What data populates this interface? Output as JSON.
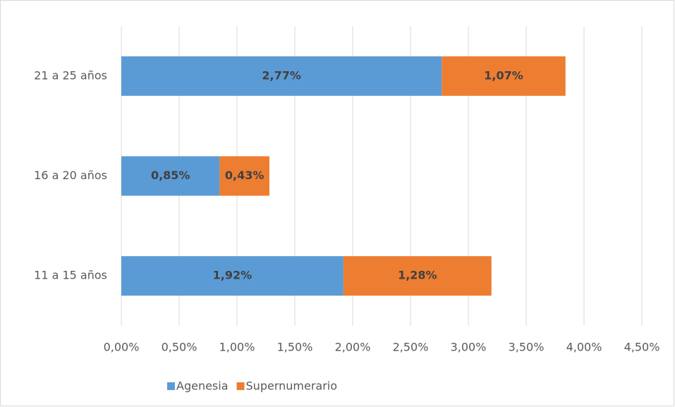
{
  "chart_data": {
    "type": "stacked-barh",
    "categories": [
      "11 a 15 años",
      "16 a 20 años",
      "21 a 25 años"
    ],
    "series": [
      {
        "name": "Agenesia",
        "color": "#5b9bd5",
        "values": [
          1.92,
          0.85,
          2.77
        ],
        "value_labels": [
          "1,92%",
          "0,85%",
          "2,77%"
        ]
      },
      {
        "name": "Supernumerario",
        "color": "#ed7d31",
        "values": [
          1.28,
          0.43,
          1.07
        ],
        "value_labels": [
          "1,28%",
          "0,43%",
          "1,07%"
        ]
      }
    ],
    "xlim": [
      0,
      4.5
    ],
    "xticks": [
      {
        "value": 0,
        "label": "0,00%"
      },
      {
        "value": 0.5,
        "label": "0,50%"
      },
      {
        "value": 1,
        "label": "1,00%"
      },
      {
        "value": 1.5,
        "label": "1,50%"
      },
      {
        "value": 2,
        "label": "2,00%"
      },
      {
        "value": 2.5,
        "label": "2,50%"
      },
      {
        "value": 3,
        "label": "3,00%"
      },
      {
        "value": 3.5,
        "label": "3,50%"
      },
      {
        "value": 4,
        "label": "4,00%"
      },
      {
        "value": 4.5,
        "label": "4,50%"
      }
    ],
    "grid": true,
    "legend": "bottom"
  }
}
